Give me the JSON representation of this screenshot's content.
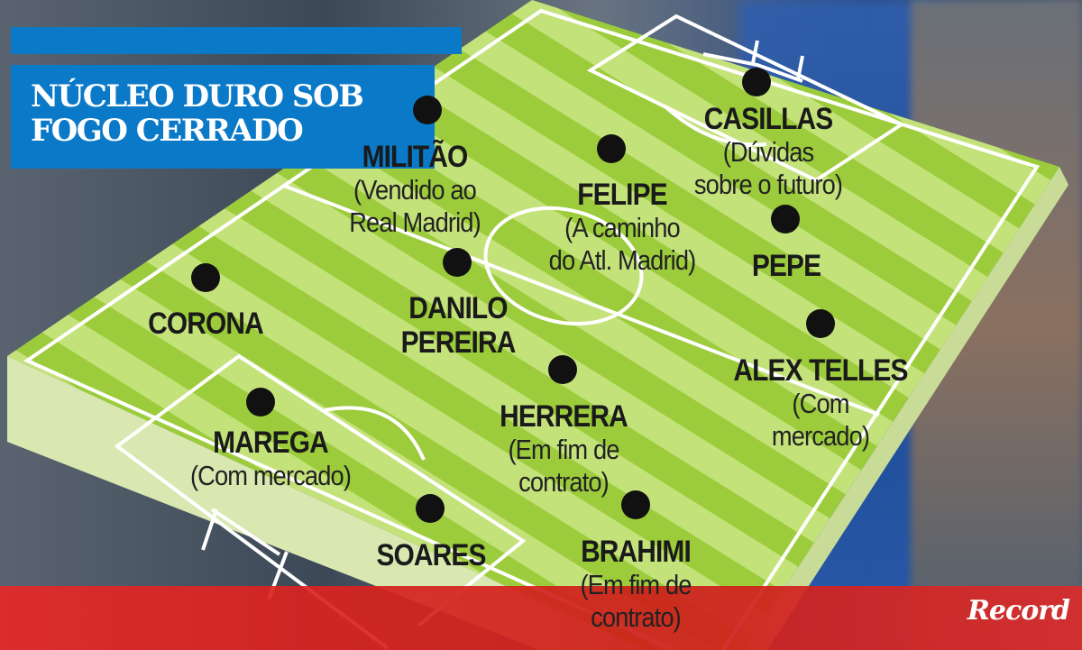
{
  "title": {
    "line1": "NÚCLEO DURO SOB",
    "line2": "FOGO CERRADO"
  },
  "brand": {
    "logo": "Record"
  },
  "colors": {
    "title_bg": "#0a7ac8",
    "pitch_light": "#c4e27a",
    "pitch_dark": "#9ccc3c",
    "footer": "#d9302a"
  },
  "players": [
    {
      "name": "CASILLAS",
      "note": [
        "(Dúvidas",
        "sobre o futuro)"
      ]
    },
    {
      "name": "MILITÃO",
      "note": [
        "(Vendido ao",
        "Real Madrid)"
      ]
    },
    {
      "name": "FELIPE",
      "note": [
        "(A caminho",
        "do Atl. Madrid)"
      ]
    },
    {
      "name": "PEPE",
      "note": []
    },
    {
      "name": "CORONA",
      "note": []
    },
    {
      "name": "DANILO",
      "name2": "PEREIRA",
      "note": []
    },
    {
      "name": "ALEX TELLES",
      "note": [
        "(Com",
        "mercado)"
      ]
    },
    {
      "name": "HERRERA",
      "note": [
        "(Em fim de",
        "contrato)"
      ]
    },
    {
      "name": "MAREGA",
      "note": [
        "(Com mercado)"
      ]
    },
    {
      "name": "SOARES",
      "note": []
    },
    {
      "name": "BRAHIMI",
      "note": [
        "(Em fim de",
        "contrato)"
      ]
    }
  ]
}
